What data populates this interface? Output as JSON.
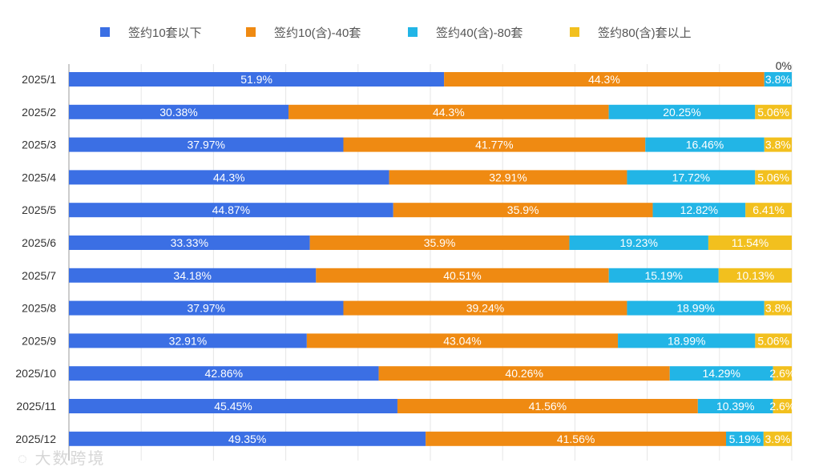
{
  "chart_data": {
    "type": "bar",
    "orientation": "horizontal",
    "stacked": true,
    "percent": true,
    "categories": [
      "2025/1",
      "2025/2",
      "2025/3",
      "2025/4",
      "2025/5",
      "2025/6",
      "2025/7",
      "2025/8",
      "2025/9",
      "2025/10",
      "2025/11",
      "2025/12"
    ],
    "series": [
      {
        "name": "签约10套以下",
        "color": "#3b6fe4",
        "values": [
          51.9,
          30.38,
          37.97,
          44.3,
          44.87,
          33.33,
          34.18,
          37.97,
          32.91,
          42.86,
          45.45,
          49.35
        ],
        "labels": [
          "51.9%",
          "30.38%",
          "37.97%",
          "44.3%",
          "44.87%",
          "33.33%",
          "34.18%",
          "37.97%",
          "32.91%",
          "42.86%",
          "45.45%",
          "49.35%"
        ]
      },
      {
        "name": "签约10(含)-40套",
        "color": "#ef8a12",
        "values": [
          44.3,
          44.3,
          41.77,
          32.91,
          35.9,
          35.9,
          40.51,
          39.24,
          43.04,
          40.26,
          41.56,
          41.56
        ],
        "labels": [
          "44.3%",
          "44.3%",
          "41.77%",
          "32.91%",
          "35.9%",
          "35.9%",
          "40.51%",
          "39.24%",
          "43.04%",
          "40.26%",
          "41.56%",
          "41.56%"
        ]
      },
      {
        "name": "签约40(含)-80套",
        "color": "#22b5e6",
        "values": [
          3.8,
          20.25,
          16.46,
          17.72,
          12.82,
          19.23,
          15.19,
          18.99,
          18.99,
          14.29,
          10.39,
          5.19
        ],
        "labels": [
          "3.8%",
          "20.25%",
          "16.46%",
          "17.72%",
          "12.82%",
          "19.23%",
          "15.19%",
          "18.99%",
          "18.99%",
          "14.29%",
          "10.39%",
          "5.19%"
        ]
      },
      {
        "name": "签约80(含)套以上",
        "color": "#f2c01e",
        "values": [
          0,
          5.06,
          3.8,
          5.06,
          6.41,
          11.54,
          10.13,
          3.8,
          5.06,
          2.6,
          2.6,
          3.9
        ],
        "labels": [
          "0%",
          "5.06%",
          "3.8%",
          "5.06%",
          "6.41%",
          "11.54%",
          "10.13%",
          "3.8%",
          "5.06%",
          "2.6%",
          "2.6%",
          "3.9%"
        ]
      }
    ],
    "xlim": [
      0,
      100
    ],
    "grid": true,
    "legend": "top"
  },
  "watermark": "大数跨境"
}
